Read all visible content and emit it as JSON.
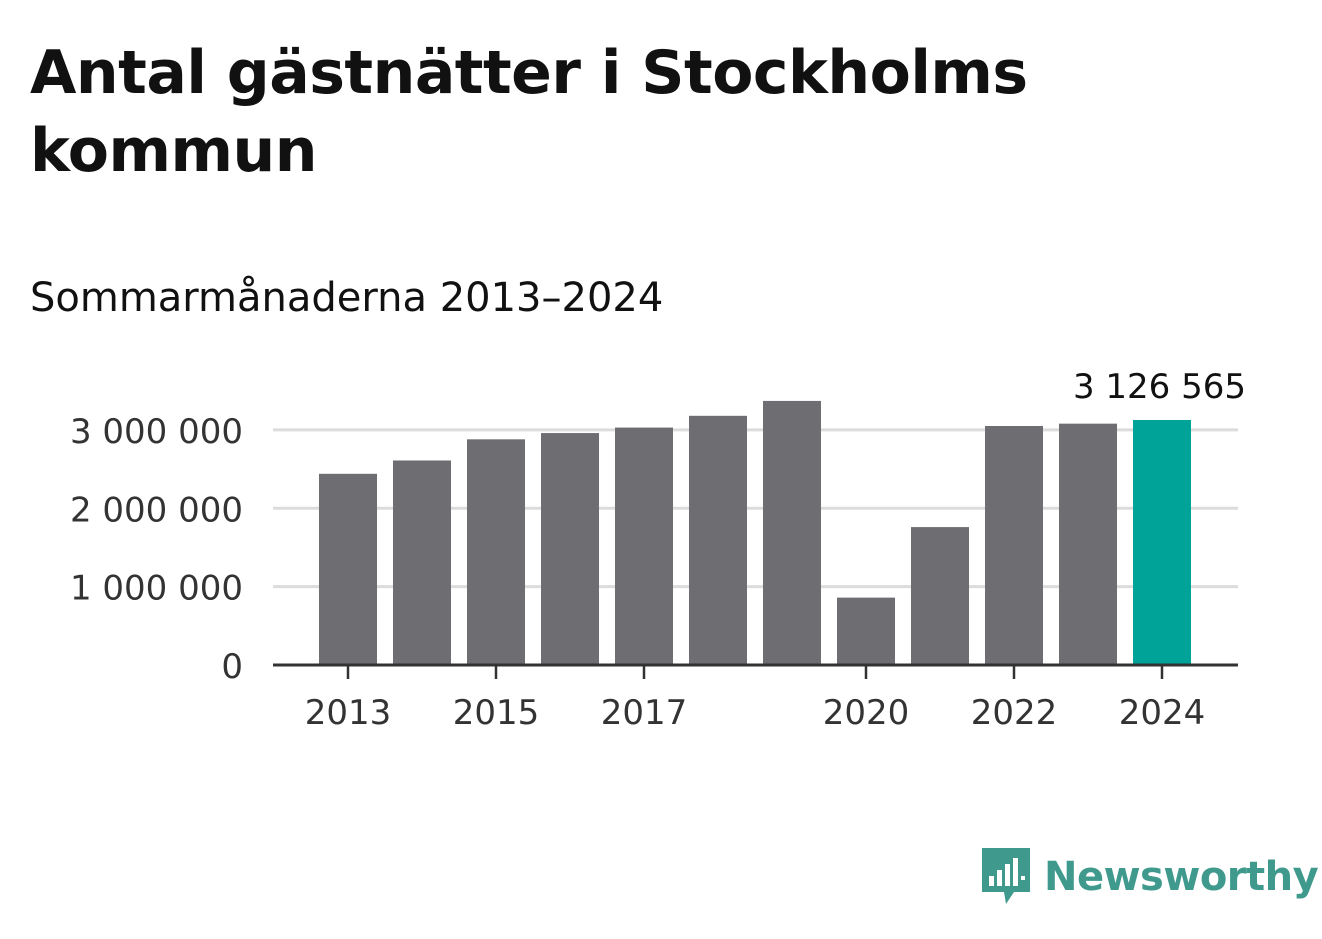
{
  "title": "Antal gästnätter i Stockholms kommun",
  "subtitle": "Sommarmånaderna 2013–2024",
  "brand": {
    "name": "Newsworthy",
    "icon": "bar-chart-speech-bubble-icon",
    "color": "#3f9a8d"
  },
  "chart_data": {
    "type": "bar",
    "categories": [
      "2013",
      "2014",
      "2015",
      "2016",
      "2017",
      "2018",
      "2019",
      "2020",
      "2021",
      "2022",
      "2023",
      "2024"
    ],
    "values": [
      2440000,
      2610000,
      2880000,
      2960000,
      3030000,
      3180000,
      3370000,
      860000,
      1760000,
      3050000,
      3080000,
      3126565
    ],
    "xtick_labels": [
      "2013",
      "2015",
      "2017",
      "2020",
      "2022",
      "2024"
    ],
    "ylim": [
      0,
      3126565
    ],
    "yticks": [
      0,
      1000000,
      2000000,
      3000000
    ],
    "ytick_labels": [
      "0",
      "1 000 000",
      "2 000 000",
      "3 000 000"
    ],
    "highlight_index": 11,
    "highlight_label": "3 126 565",
    "colors": {
      "bar": "#6e6d72",
      "highlight": "#00a398",
      "grid": "#dcdcdc",
      "axis": "#333333"
    },
    "grid": true
  }
}
